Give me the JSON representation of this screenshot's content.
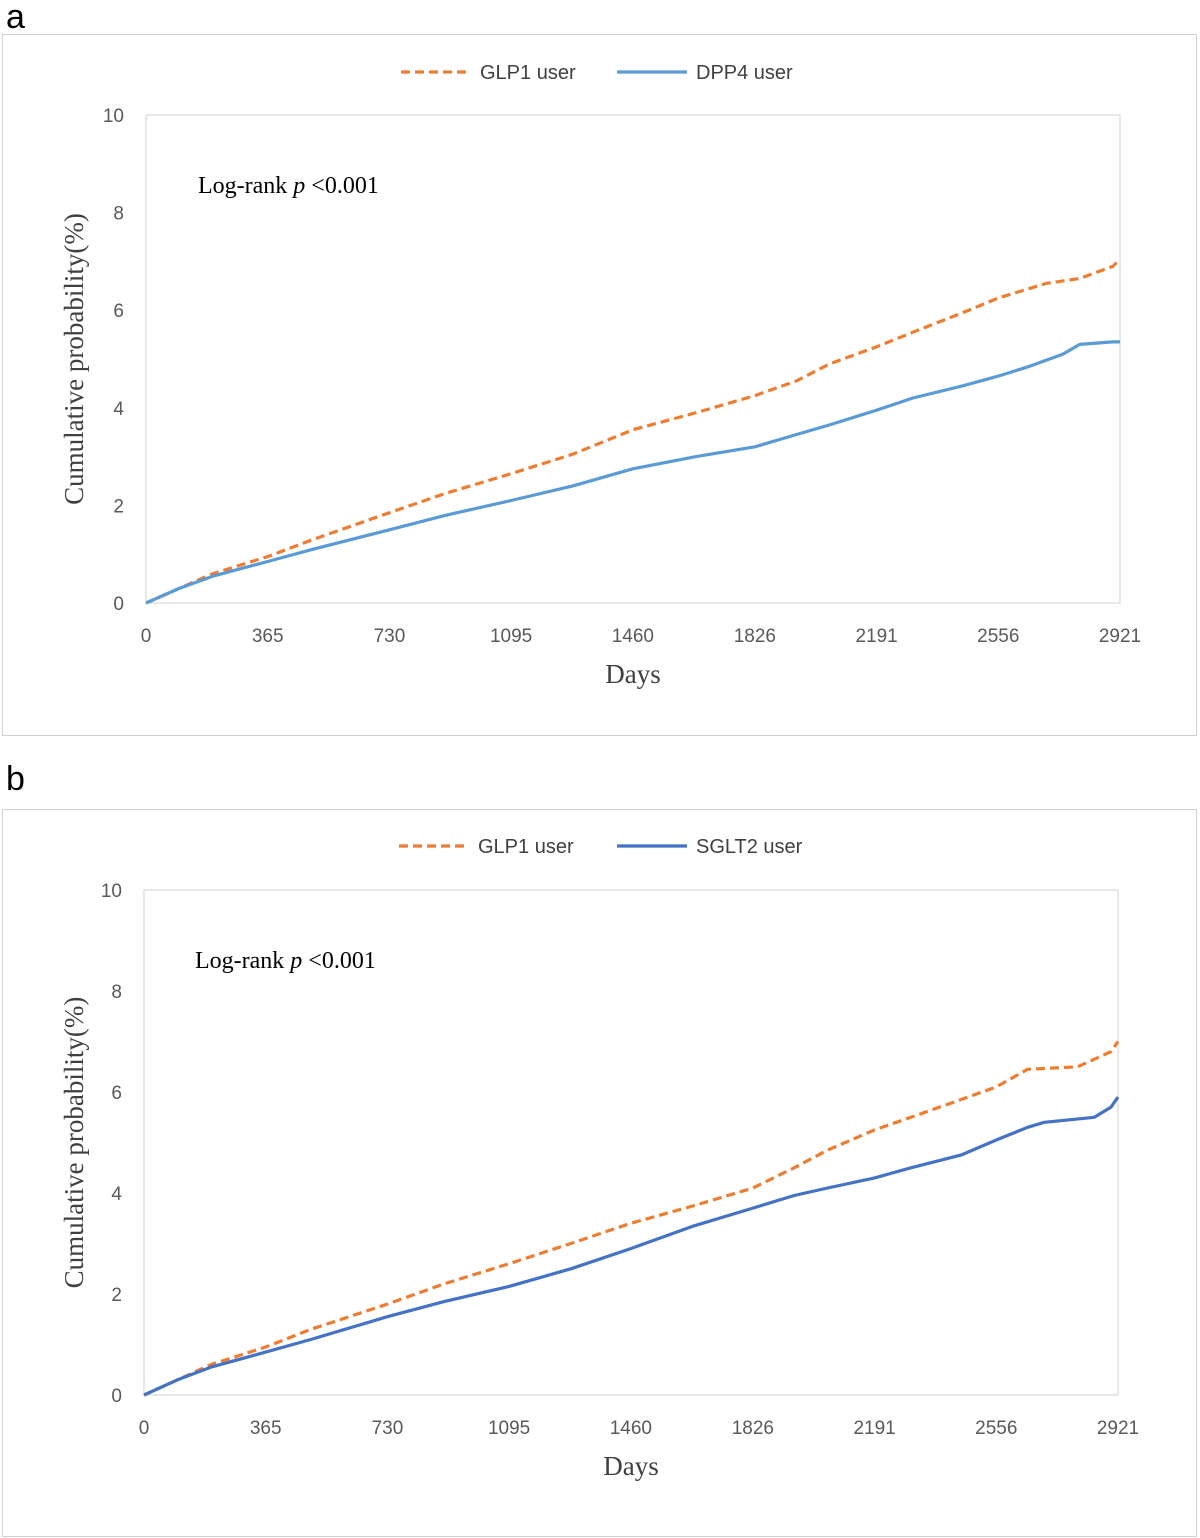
{
  "panels": [
    {
      "letter": "a"
    },
    {
      "letter": "b"
    }
  ],
  "colors": {
    "glp1": "#ED7D31",
    "dpp4": "#5B9BD5",
    "sglt2": "#4472C4",
    "axis": "#d9d9d9"
  },
  "chart_data": [
    {
      "type": "line",
      "panel": "a",
      "xlabel": "Days",
      "ylabel": "Cumulative probability(%)",
      "annotation_prefix": "Log-rank ",
      "annotation_p": "p",
      "annotation_suffix": " <0.001",
      "xticks": [
        "0",
        "365",
        "730",
        "1095",
        "1460",
        "1826",
        "2191",
        "2556",
        "2921"
      ],
      "yticks": [
        "0",
        "2",
        "4",
        "6",
        "8",
        "10"
      ],
      "xlim": [
        0,
        2921
      ],
      "ylim": [
        0,
        10
      ],
      "legend_position": "top-center",
      "series": [
        {
          "name": "GLP1 user",
          "style": "dashed",
          "color": "#ED7D31",
          "x": [
            0,
            100,
            200,
            365,
            500,
            730,
            900,
            1095,
            1280,
            1460,
            1650,
            1826,
            1950,
            2050,
            2191,
            2300,
            2450,
            2556,
            2700,
            2800,
            2900,
            2921
          ],
          "y": [
            0,
            0.3,
            0.6,
            0.95,
            1.3,
            1.85,
            2.25,
            2.65,
            3.05,
            3.55,
            3.9,
            4.25,
            4.55,
            4.9,
            5.25,
            5.55,
            5.95,
            6.25,
            6.55,
            6.65,
            6.9,
            7.05
          ]
        },
        {
          "name": "DPP4  user",
          "style": "solid",
          "color": "#5B9BD5",
          "x": [
            0,
            100,
            200,
            365,
            500,
            730,
            900,
            1095,
            1280,
            1460,
            1650,
            1826,
            1950,
            2050,
            2191,
            2300,
            2450,
            2556,
            2650,
            2750,
            2800,
            2900,
            2921
          ],
          "y": [
            0,
            0.3,
            0.55,
            0.85,
            1.1,
            1.5,
            1.8,
            2.1,
            2.4,
            2.75,
            3.0,
            3.2,
            3.45,
            3.65,
            3.95,
            4.2,
            4.45,
            4.65,
            4.85,
            5.1,
            5.3,
            5.35,
            5.35
          ]
        }
      ]
    },
    {
      "type": "line",
      "panel": "b",
      "xlabel": "Days",
      "ylabel": "Cumulative probability(%)",
      "annotation_prefix": "Log-rank ",
      "annotation_p": "p",
      "annotation_suffix": " <0.001",
      "xticks": [
        "0",
        "365",
        "730",
        "1095",
        "1460",
        "1826",
        "2191",
        "2556",
        "2921"
      ],
      "yticks": [
        "0",
        "2",
        "4",
        "6",
        "8",
        "10"
      ],
      "xlim": [
        0,
        2921
      ],
      "ylim": [
        0,
        10
      ],
      "legend_position": "top-center",
      "series": [
        {
          "name": "GLP1 user",
          "style": "dashed",
          "color": "#ED7D31",
          "x": [
            0,
            100,
            200,
            365,
            500,
            730,
            900,
            1095,
            1280,
            1460,
            1650,
            1826,
            1950,
            2050,
            2191,
            2300,
            2450,
            2556,
            2650,
            2800,
            2900,
            2921
          ],
          "y": [
            0,
            0.3,
            0.6,
            0.95,
            1.3,
            1.8,
            2.2,
            2.6,
            3.0,
            3.4,
            3.75,
            4.1,
            4.5,
            4.85,
            5.25,
            5.5,
            5.85,
            6.1,
            6.45,
            6.5,
            6.8,
            7.0
          ]
        },
        {
          "name": "SGLT2 user",
          "style": "solid",
          "color": "#4472C4",
          "x": [
            0,
            100,
            200,
            365,
            500,
            730,
            900,
            1095,
            1280,
            1460,
            1650,
            1826,
            1950,
            2050,
            2191,
            2300,
            2450,
            2556,
            2650,
            2700,
            2850,
            2900,
            2921
          ],
          "y": [
            0,
            0.3,
            0.55,
            0.85,
            1.1,
            1.55,
            1.85,
            2.15,
            2.5,
            2.9,
            3.35,
            3.7,
            3.95,
            4.1,
            4.3,
            4.5,
            4.75,
            5.05,
            5.3,
            5.4,
            5.5,
            5.7,
            5.9
          ]
        }
      ]
    }
  ]
}
